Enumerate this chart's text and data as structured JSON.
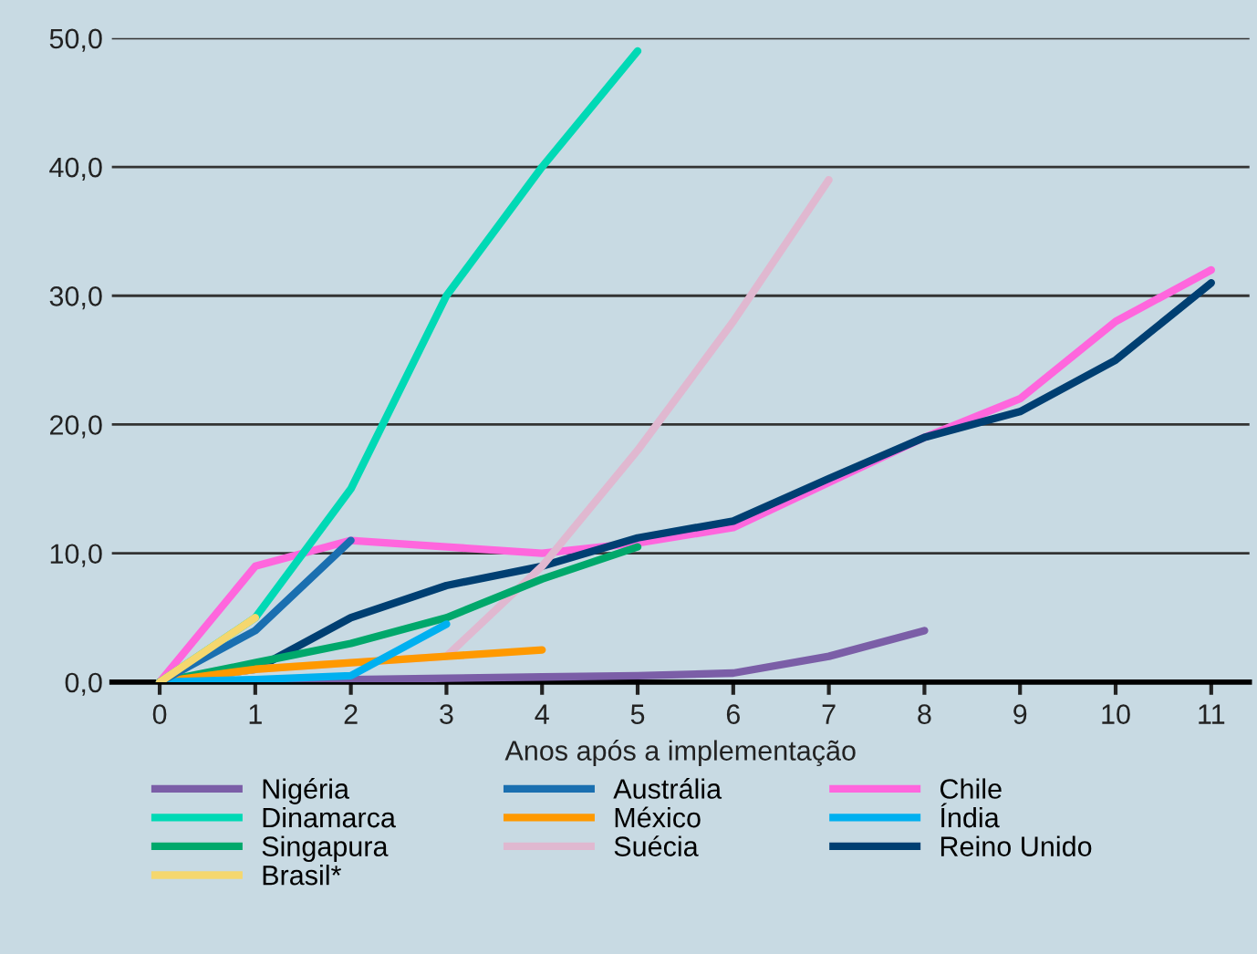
{
  "chart_data": {
    "type": "line",
    "xlabel": "Anos após a implementação",
    "xlim": [
      -0.5,
      11.4
    ],
    "xticks": [
      0,
      1,
      2,
      3,
      4,
      5,
      6,
      7,
      8,
      9,
      10,
      11
    ],
    "ylim": [
      0,
      50
    ],
    "yticks": [
      {
        "value": 0,
        "label": "0,0"
      },
      {
        "value": 10,
        "label": "10,0"
      },
      {
        "value": 20,
        "label": "20,0"
      },
      {
        "value": 30,
        "label": "30,0"
      },
      {
        "value": 40,
        "label": "40,0"
      },
      {
        "value": 50,
        "label": "50,0"
      }
    ],
    "grid": "y",
    "legend": "bottom",
    "marker": "none",
    "line_style": "solid",
    "series": [
      {
        "name": "Nigéria",
        "color": "#7b5ea7",
        "x": [
          0,
          1,
          2,
          3,
          4,
          5,
          6,
          7,
          8
        ],
        "values": [
          0,
          0.1,
          0.2,
          0.3,
          0.4,
          0.5,
          0.7,
          2,
          4
        ]
      },
      {
        "name": "Austrália",
        "color": "#1a6fb0",
        "x": [
          0,
          1,
          2
        ],
        "values": [
          0,
          4,
          11
        ]
      },
      {
        "name": "Chile",
        "color": "#ff66dd",
        "x": [
          0,
          1,
          2,
          3,
          4,
          5,
          6,
          7,
          8,
          9,
          10,
          11
        ],
        "values": [
          0,
          9,
          11,
          10.5,
          10,
          10.8,
          12,
          15.5,
          19,
          22,
          28,
          32
        ]
      },
      {
        "name": "Dinamarca",
        "color": "#00d9b5",
        "x": [
          0,
          1,
          2,
          3,
          4,
          5
        ],
        "values": [
          0,
          5,
          15,
          30,
          40,
          49
        ]
      },
      {
        "name": "México",
        "color": "#ff9900",
        "x": [
          0,
          1,
          2,
          3,
          4
        ],
        "values": [
          0,
          1,
          1.5,
          2,
          2.5
        ]
      },
      {
        "name": "Índia",
        "color": "#00b0f0",
        "x": [
          0,
          1,
          2,
          3
        ],
        "values": [
          0,
          0.2,
          0.5,
          4.5
        ]
      },
      {
        "name": "Singapura",
        "color": "#00a86b",
        "x": [
          0,
          1,
          2,
          3,
          4,
          5
        ],
        "values": [
          0,
          1.5,
          3,
          5,
          8,
          10.5
        ]
      },
      {
        "name": "Suécia",
        "color": "#e0b8d0",
        "x": [
          0,
          1,
          2,
          3,
          4,
          5,
          6,
          7
        ],
        "values": [
          0,
          1,
          1.5,
          2,
          9,
          18,
          28,
          39
        ]
      },
      {
        "name": "Reino Unido",
        "color": "#003f72",
        "x": [
          0,
          1,
          2,
          3,
          4,
          5,
          6,
          7,
          8,
          9,
          10,
          11
        ],
        "values": [
          0,
          1,
          5,
          7.5,
          9,
          11.2,
          12.5,
          15.8,
          19,
          21,
          25,
          31
        ]
      },
      {
        "name": "Brasil*",
        "color": "#f5d76e",
        "x": [
          0,
          1
        ],
        "values": [
          0,
          5
        ]
      }
    ]
  }
}
